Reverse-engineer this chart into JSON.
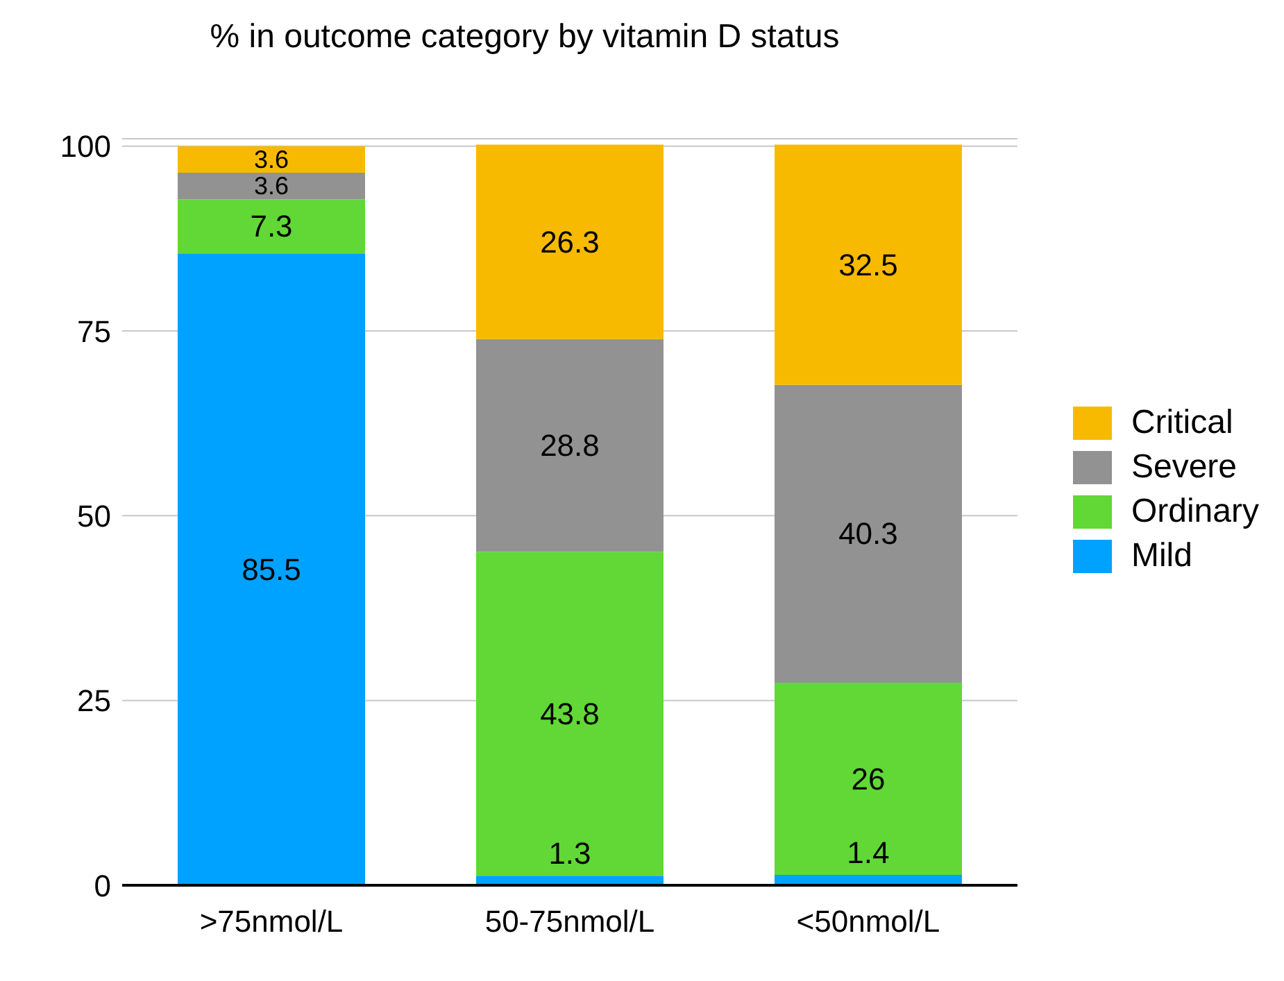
{
  "chart_data": {
    "type": "bar",
    "title": "% in outcome category by vitamin D status",
    "categories": [
      ">75nmol/L",
      "50-75nmol/L",
      "<50nmol/L"
    ],
    "stacked": true,
    "data_labels": true,
    "grid": "y",
    "legend": "right",
    "ylim": [
      0,
      101
    ],
    "yticks": [
      0,
      25,
      50,
      75,
      100
    ],
    "series": [
      {
        "name": "Mild",
        "color": "#00a2ff",
        "values": [
          85.5,
          1.3,
          1.4
        ]
      },
      {
        "name": "Ordinary",
        "color": "#61d836",
        "values": [
          7.3,
          43.8,
          26
        ]
      },
      {
        "name": "Severe",
        "color": "#929292",
        "values": [
          3.6,
          28.8,
          40.3
        ]
      },
      {
        "name": "Critical",
        "color": "#f8ba00",
        "values": [
          3.6,
          26.3,
          32.5
        ]
      }
    ]
  }
}
